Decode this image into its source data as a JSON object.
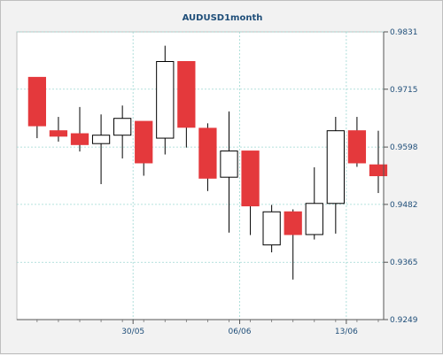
{
  "chart_data": {
    "type": "candlestick",
    "title": "AUDUSD1month",
    "y_ticks": [
      "0.9831",
      "0.9715",
      "0.9598",
      "0.9482",
      "0.9365",
      "0.9249"
    ],
    "ylim": [
      0.9249,
      0.9831
    ],
    "x_tick_labels": [
      {
        "label": "30/05",
        "at_index": 4.5
      },
      {
        "label": "06/06",
        "at_index": 9.5
      },
      {
        "label": "13/06",
        "at_index": 14.5
      }
    ],
    "grid": true,
    "colors": {
      "bull": "#ffffff",
      "bear": "#e4393c",
      "wick": "#000000",
      "grid": "#9ed8d2",
      "plot_bg": "#ffffff"
    },
    "candles": [
      {
        "open": 0.9739,
        "high": 0.9739,
        "low": 0.9616,
        "close": 0.9641
      },
      {
        "open": 0.9631,
        "high": 0.9659,
        "low": 0.9609,
        "close": 0.962
      },
      {
        "open": 0.9625,
        "high": 0.9679,
        "low": 0.9589,
        "close": 0.9603
      },
      {
        "open": 0.9605,
        "high": 0.9664,
        "low": 0.9523,
        "close": 0.9622
      },
      {
        "open": 0.9622,
        "high": 0.9682,
        "low": 0.9575,
        "close": 0.9656
      },
      {
        "open": 0.965,
        "high": 0.965,
        "low": 0.954,
        "close": 0.9566
      },
      {
        "open": 0.9616,
        "high": 0.9803,
        "low": 0.9583,
        "close": 0.9771
      },
      {
        "open": 0.9771,
        "high": 0.9771,
        "low": 0.9597,
        "close": 0.9638
      },
      {
        "open": 0.9636,
        "high": 0.9646,
        "low": 0.9509,
        "close": 0.9535
      },
      {
        "open": 0.9537,
        "high": 0.967,
        "low": 0.9425,
        "close": 0.959
      },
      {
        "open": 0.959,
        "high": 0.959,
        "low": 0.942,
        "close": 0.9479
      },
      {
        "open": 0.94,
        "high": 0.9481,
        "low": 0.9385,
        "close": 0.9467
      },
      {
        "open": 0.9467,
        "high": 0.9472,
        "low": 0.933,
        "close": 0.9421
      },
      {
        "open": 0.9421,
        "high": 0.9557,
        "low": 0.9411,
        "close": 0.9484
      },
      {
        "open": 0.9484,
        "high": 0.9659,
        "low": 0.9423,
        "close": 0.9631
      },
      {
        "open": 0.9631,
        "high": 0.9659,
        "low": 0.9558,
        "close": 0.9566
      },
      {
        "open": 0.9562,
        "high": 0.9631,
        "low": 0.9505,
        "close": 0.954
      }
    ]
  }
}
